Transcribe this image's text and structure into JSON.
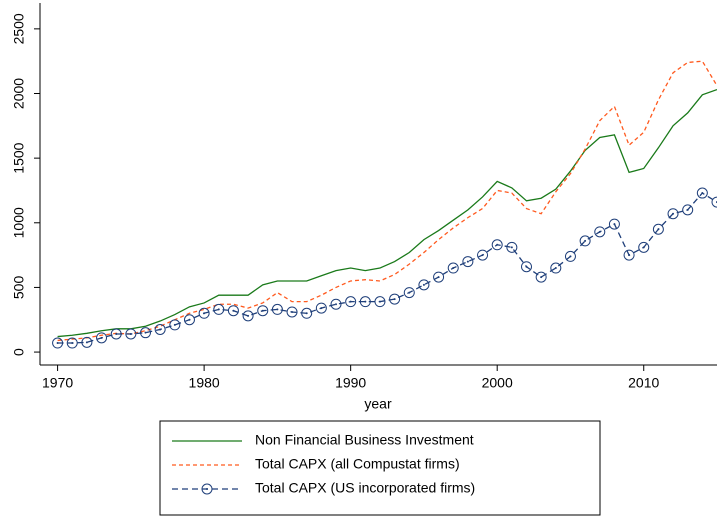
{
  "chart_data": {
    "type": "line",
    "x_label": "year",
    "x": [
      1970,
      1971,
      1972,
      1973,
      1974,
      1975,
      1976,
      1977,
      1978,
      1979,
      1980,
      1981,
      1982,
      1983,
      1984,
      1985,
      1986,
      1987,
      1988,
      1989,
      1990,
      1991,
      1992,
      1993,
      1994,
      1995,
      1996,
      1997,
      1998,
      1999,
      2000,
      2001,
      2002,
      2003,
      2004,
      2005,
      2006,
      2007,
      2008,
      2009,
      2010,
      2011,
      2012,
      2013,
      2014,
      2015
    ],
    "series": [
      {
        "name": "Non Financial Business Investment",
        "color": "#1a7a1a",
        "dash": "solid",
        "marker": "none",
        "values": [
          120,
          130,
          145,
          165,
          180,
          180,
          200,
          240,
          290,
          350,
          380,
          440,
          440,
          440,
          520,
          550,
          550,
          550,
          590,
          630,
          650,
          630,
          650,
          700,
          770,
          870,
          940,
          1020,
          1100,
          1200,
          1320,
          1270,
          1170,
          1190,
          1260,
          1400,
          1560,
          1660,
          1680,
          1390,
          1420,
          1580,
          1750,
          1850,
          1990,
          2030
        ]
      },
      {
        "name": "Total CAPX (all Compustat firms)",
        "color": "#ff5a1f",
        "dash": "short",
        "marker": "none",
        "values": [
          90,
          100,
          110,
          130,
          145,
          140,
          165,
          200,
          250,
          300,
          330,
          370,
          370,
          340,
          380,
          460,
          390,
          390,
          440,
          500,
          550,
          560,
          550,
          600,
          680,
          770,
          870,
          960,
          1040,
          1110,
          1250,
          1230,
          1110,
          1070,
          1240,
          1380,
          1570,
          1790,
          1900,
          1600,
          1700,
          1950,
          2160,
          2240,
          2250,
          2060
        ]
      },
      {
        "name": "Total CAPX (US incorporated firms)",
        "color": "#1f3f7a",
        "dash": "long",
        "marker": "circle",
        "values": [
          70,
          70,
          75,
          110,
          140,
          140,
          150,
          175,
          210,
          250,
          300,
          330,
          320,
          280,
          320,
          330,
          310,
          300,
          340,
          370,
          390,
          390,
          390,
          410,
          460,
          520,
          580,
          650,
          700,
          750,
          830,
          810,
          660,
          580,
          650,
          740,
          860,
          930,
          990,
          750,
          810,
          950,
          1070,
          1100,
          1230,
          1160
        ]
      }
    ],
    "xlim": [
      1968.8,
      2015
    ],
    "xticks": [
      1970,
      1980,
      1990,
      2000,
      2010
    ],
    "ylim": [
      -100,
      2700
    ],
    "yticks": [
      0,
      500,
      1000,
      1500,
      2000,
      2500
    ],
    "grid": false,
    "legend": "bottom"
  }
}
